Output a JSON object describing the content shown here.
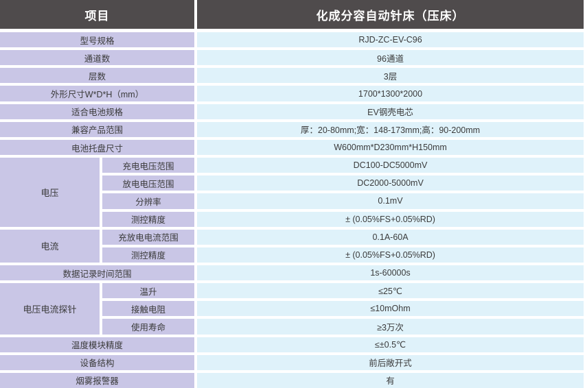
{
  "colors": {
    "header_bg": "#4F4B4C",
    "header_text": "#FFFFFF",
    "label_bg": "#C9C6E6",
    "value_bg": "#DFF2FA",
    "gap": "#FFFFFF",
    "text": "#3A3A3A"
  },
  "header": {
    "left": "项目",
    "right": "化成分容自动针床（压床）"
  },
  "rows": [
    {
      "label": "型号规格",
      "value": "RJD-ZC-EV-C96"
    },
    {
      "label": "通道数",
      "value": "96通道"
    },
    {
      "label": "层数",
      "value": "3层"
    },
    {
      "label": "外形尺寸W*D*H（mm）",
      "value": "1700*1300*2000"
    },
    {
      "label": "适合电池规格",
      "value": "EV钢壳电芯"
    },
    {
      "label": "兼容产品范围",
      "value": "厚：20-80mm;宽：148-173mm;高：90-200mm"
    },
    {
      "label": "电池托盘尺寸",
      "value": "W600mm*D230mm*H150mm"
    },
    {
      "group": "电压",
      "sub": [
        {
          "label": "充电电压范围",
          "value": "DC100-DC5000mV"
        },
        {
          "label": "放电电压范围",
          "value": "DC2000-5000mV"
        },
        {
          "label": "分辨率",
          "value": "0.1mV"
        },
        {
          "label": "测控精度",
          "value": "± (0.05%FS+0.05%RD)"
        }
      ]
    },
    {
      "group": "电流",
      "sub": [
        {
          "label": "充放电电流范围",
          "value": "0.1A-60A"
        },
        {
          "label": "测控精度",
          "value": "± (0.05%FS+0.05%RD)"
        }
      ]
    },
    {
      "label": "数据记录时间范围",
      "value": "1s-60000s"
    },
    {
      "group": "电压电流探针",
      "sub": [
        {
          "label": "温升",
          "value": "≤25℃"
        },
        {
          "label": "接触电阻",
          "value": "≤10mOhm"
        },
        {
          "label": "使用寿命",
          "value": "≥3万次"
        }
      ]
    },
    {
      "label": "温度模块精度",
      "value": "≤±0.5℃"
    },
    {
      "label": "设备结构",
      "value": "前后敞开式"
    },
    {
      "label": "烟雾报警器",
      "value": "有"
    }
  ]
}
